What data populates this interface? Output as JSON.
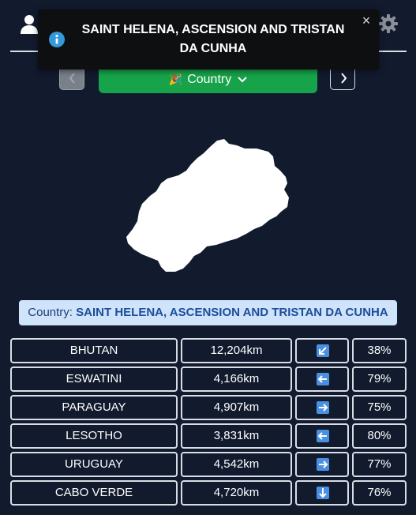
{
  "toast": {
    "text": "SAINT HELENA, ASCENSION AND TRISTAN DA CUNHA",
    "icon": "info-icon",
    "close": "×"
  },
  "header": {
    "left_icon": "user-icon",
    "right_icon": "gear-icon"
  },
  "toolbar": {
    "country_label": "Country",
    "country_emoji": "🎉",
    "prev_icon": "chevron-left-icon",
    "next_icon": "chevron-right-icon",
    "button_color": "#17a34a"
  },
  "answer": {
    "label": "Country:",
    "value": "SAINT HELENA, ASCENSION AND TRISTAN DA CUNHA"
  },
  "guesses": [
    {
      "country": "BHUTAN",
      "distance": "12,204km",
      "direction": "southwest",
      "proximity": "38%"
    },
    {
      "country": "ESWATINI",
      "distance": "4,166km",
      "direction": "west",
      "proximity": "79%"
    },
    {
      "country": "PARAGUAY",
      "distance": "4,907km",
      "direction": "east",
      "proximity": "75%"
    },
    {
      "country": "LESOTHO",
      "distance": "3,831km",
      "direction": "west",
      "proximity": "80%"
    },
    {
      "country": "URUGUAY",
      "distance": "4,542km",
      "direction": "east",
      "proximity": "77%"
    },
    {
      "country": "CABO VERDE",
      "distance": "4,720km",
      "direction": "south",
      "proximity": "76%"
    }
  ],
  "colors": {
    "background": "#121a2e",
    "answer_bg": "#cfe3fb",
    "arrow_bg": "#4a90e2"
  }
}
